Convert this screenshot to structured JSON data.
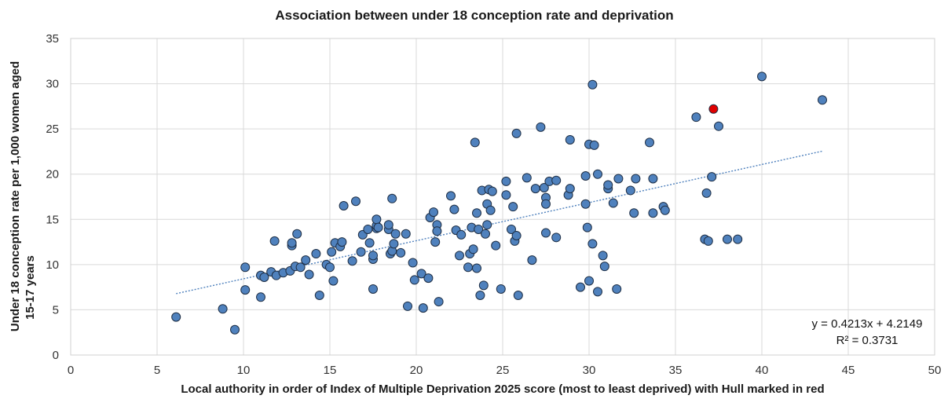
{
  "chart_data": {
    "type": "scatter",
    "title": "Association  between  under 18 conception  rate  and  deprivation",
    "xlabel": "Local authority  in order of Index of Multiple Deprivation 2025 score (most to least deprived) with Hull marked in red",
    "ylabel": [
      "Under 18 conception rate per 1,000 women aged",
      "15-17 years"
    ],
    "xlim": [
      0,
      50
    ],
    "ylim": [
      0,
      35
    ],
    "xticks": [
      0,
      5,
      10,
      15,
      20,
      25,
      30,
      35,
      40,
      45,
      50
    ],
    "yticks": [
      0,
      5,
      10,
      15,
      20,
      25,
      30,
      35
    ],
    "grid": true,
    "colors": {
      "points": "#4f81bd",
      "point_edge": "#1f2f45",
      "highlight": "#e00000",
      "trendline": "#4f81bd"
    },
    "trendline": {
      "slope": 0.4213,
      "intercept": 4.2149,
      "x_range": [
        6.1,
        43.5
      ]
    },
    "annotations": [
      "y = 0.4213x + 4.2149",
      "R² = 0.3731"
    ],
    "highlight": {
      "label": "Hull",
      "x": 37.2,
      "y": 27.2
    },
    "points": [
      [
        6.1,
        4.2
      ],
      [
        8.8,
        5.1
      ],
      [
        9.5,
        2.8
      ],
      [
        10.1,
        9.7
      ],
      [
        10.1,
        7.2
      ],
      [
        11,
        8.8
      ],
      [
        11,
        6.4
      ],
      [
        11.2,
        8.6
      ],
      [
        11.6,
        9.2
      ],
      [
        11.8,
        12.6
      ],
      [
        11.9,
        8.8
      ],
      [
        12.3,
        9.1
      ],
      [
        12.7,
        9.3
      ],
      [
        12.8,
        12.1
      ],
      [
        12.8,
        12.4
      ],
      [
        13,
        9.8
      ],
      [
        13.1,
        13.4
      ],
      [
        13.3,
        9.7
      ],
      [
        13.6,
        10.5
      ],
      [
        13.8,
        8.9
      ],
      [
        14.2,
        11.2
      ],
      [
        14.4,
        6.6
      ],
      [
        14.8,
        10
      ],
      [
        15,
        9.7
      ],
      [
        15.1,
        11.4
      ],
      [
        15.2,
        8.2
      ],
      [
        15.3,
        12.4
      ],
      [
        15.6,
        12
      ],
      [
        15.7,
        12.5
      ],
      [
        15.8,
        16.5
      ],
      [
        16.3,
        10.4
      ],
      [
        16.5,
        17
      ],
      [
        16.8,
        11.4
      ],
      [
        16.9,
        13.3
      ],
      [
        17.2,
        13.9
      ],
      [
        17.3,
        12.4
      ],
      [
        17.5,
        10.6
      ],
      [
        17.5,
        11
      ],
      [
        17.5,
        7.3
      ],
      [
        17.7,
        14
      ],
      [
        17.7,
        14.3
      ],
      [
        17.7,
        15
      ],
      [
        17.8,
        14.1
      ],
      [
        18.4,
        13.9
      ],
      [
        18.4,
        14.4
      ],
      [
        18.5,
        11.2
      ],
      [
        18.6,
        11.5
      ],
      [
        18.6,
        17.3
      ],
      [
        18.7,
        12.3
      ],
      [
        18.8,
        13.4
      ],
      [
        19.1,
        11.3
      ],
      [
        19.4,
        13.4
      ],
      [
        19.5,
        5.4
      ],
      [
        19.8,
        10.2
      ],
      [
        19.9,
        8.3
      ],
      [
        20.3,
        9
      ],
      [
        20.4,
        5.2
      ],
      [
        20.7,
        8.5
      ],
      [
        20.8,
        15.2
      ],
      [
        21,
        15.8
      ],
      [
        21.1,
        12.5
      ],
      [
        21.2,
        14.4
      ],
      [
        21.2,
        13.7
      ],
      [
        21.3,
        5.9
      ],
      [
        22,
        17.6
      ],
      [
        22.2,
        16.1
      ],
      [
        22.3,
        13.8
      ],
      [
        22.5,
        11
      ],
      [
        22.6,
        13.3
      ],
      [
        23,
        9.7
      ],
      [
        23.1,
        11.2
      ],
      [
        23.2,
        14.1
      ],
      [
        23.3,
        11.7
      ],
      [
        23.4,
        23.5
      ],
      [
        23.5,
        15.7
      ],
      [
        23.5,
        9.6
      ],
      [
        23.6,
        13.9
      ],
      [
        23.7,
        6.6
      ],
      [
        23.8,
        18.2
      ],
      [
        23.9,
        7.7
      ],
      [
        24,
        13.4
      ],
      [
        24.1,
        14.4
      ],
      [
        24.1,
        16.7
      ],
      [
        24.2,
        18.3
      ],
      [
        24.3,
        16
      ],
      [
        24.4,
        18.1
      ],
      [
        24.6,
        12.1
      ],
      [
        24.9,
        7.3
      ],
      [
        25.2,
        17.7
      ],
      [
        25.2,
        19.2
      ],
      [
        25.5,
        13.9
      ],
      [
        25.6,
        16.4
      ],
      [
        25.7,
        12.6
      ],
      [
        25.8,
        24.5
      ],
      [
        25.8,
        13.2
      ],
      [
        25.9,
        6.6
      ],
      [
        26.4,
        19.6
      ],
      [
        26.7,
        10.5
      ],
      [
        26.9,
        18.4
      ],
      [
        27.2,
        25.2
      ],
      [
        27.4,
        18.5
      ],
      [
        27.5,
        17.4
      ],
      [
        27.5,
        16.7
      ],
      [
        27.5,
        13.5
      ],
      [
        27.7,
        19.2
      ],
      [
        28.1,
        19.3
      ],
      [
        28.1,
        13
      ],
      [
        28.8,
        17.7
      ],
      [
        28.9,
        18.4
      ],
      [
        28.9,
        23.8
      ],
      [
        29.5,
        7.5
      ],
      [
        29.8,
        19.8
      ],
      [
        29.8,
        16.7
      ],
      [
        29.9,
        14.1
      ],
      [
        30,
        8.2
      ],
      [
        30,
        23.3
      ],
      [
        30.2,
        29.9
      ],
      [
        30.2,
        12.3
      ],
      [
        30.3,
        23.2
      ],
      [
        30.5,
        20
      ],
      [
        30.5,
        7
      ],
      [
        30.8,
        11
      ],
      [
        30.9,
        9.8
      ],
      [
        31.1,
        18.4
      ],
      [
        31.1,
        18.8
      ],
      [
        31.4,
        16.8
      ],
      [
        31.6,
        7.3
      ],
      [
        31.7,
        19.5
      ],
      [
        32.4,
        18.2
      ],
      [
        32.6,
        15.7
      ],
      [
        32.7,
        19.5
      ],
      [
        33.5,
        23.5
      ],
      [
        33.7,
        15.7
      ],
      [
        33.7,
        19.5
      ],
      [
        34.3,
        16.4
      ],
      [
        34.4,
        16
      ],
      [
        36.2,
        26.3
      ],
      [
        36.7,
        12.8
      ],
      [
        36.8,
        17.9
      ],
      [
        36.9,
        12.6
      ],
      [
        37.1,
        19.7
      ],
      [
        37.5,
        25.3
      ],
      [
        38,
        12.8
      ],
      [
        38.6,
        12.8
      ],
      [
        40,
        30.8
      ],
      [
        43.5,
        28.2
      ]
    ]
  }
}
